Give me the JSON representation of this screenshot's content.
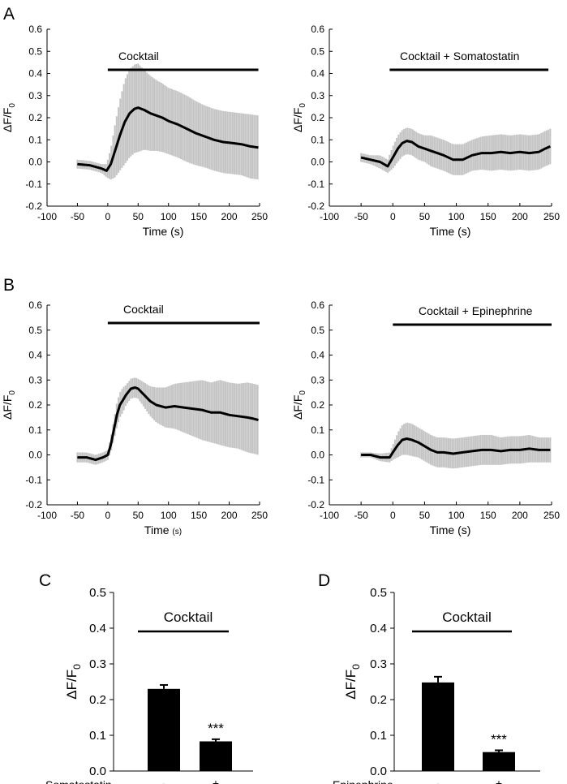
{
  "panel_labels": [
    "A",
    "B",
    "C",
    "D"
  ],
  "chart_data": [
    {
      "panel": "A",
      "type": "line",
      "title": "Cocktail",
      "xlabel": "Time (s)",
      "ylabel": "ΔF/F0",
      "xlim": [
        -100,
        250
      ],
      "ylim": [
        -0.2,
        0.6
      ],
      "xticks": [
        -100,
        -50,
        0,
        50,
        100,
        150,
        200,
        250
      ],
      "yticks": [
        -0.2,
        -0.1,
        0.0,
        0.1,
        0.2,
        0.3,
        0.4,
        0.5,
        0.6
      ],
      "ytick_labels": [
        "-0.2",
        "-0.1",
        "0.0",
        "0.1",
        "0.2",
        "0.3",
        "0.4",
        "0.5",
        "0.6"
      ],
      "bar": [
        0,
        248
      ],
      "x": [
        -50,
        -30,
        -10,
        -2,
        5,
        12,
        20,
        28,
        36,
        44,
        50,
        60,
        70,
        80,
        90,
        100,
        115,
        130,
        145,
        160,
        175,
        190,
        205,
        220,
        235,
        248
      ],
      "mean": [
        -0.01,
        -0.015,
        -0.03,
        -0.04,
        -0.01,
        0.05,
        0.12,
        0.18,
        0.22,
        0.24,
        0.245,
        0.235,
        0.22,
        0.21,
        0.2,
        0.185,
        0.17,
        0.15,
        0.13,
        0.115,
        0.1,
        0.09,
        0.085,
        0.08,
        0.07,
        0.065
      ],
      "error": [
        0.02,
        0.02,
        0.02,
        0.03,
        0.07,
        0.12,
        0.16,
        0.19,
        0.2,
        0.2,
        0.2,
        0.18,
        0.17,
        0.16,
        0.155,
        0.15,
        0.15,
        0.15,
        0.145,
        0.14,
        0.14,
        0.14,
        0.14,
        0.14,
        0.145,
        0.145
      ]
    },
    {
      "panel": "A",
      "type": "line",
      "title": "Cocktail + Somatostatin",
      "xlabel": "Time (s)",
      "ylabel": "ΔF/F0",
      "xlim": [
        -100,
        250
      ],
      "ylim": [
        -0.2,
        0.6
      ],
      "xticks": [
        -100,
        -50,
        0,
        50,
        100,
        150,
        200,
        250
      ],
      "yticks": [
        -0.2,
        -0.1,
        0.0,
        0.1,
        0.2,
        0.3,
        0.4,
        0.5,
        0.6
      ],
      "ytick_labels": [
        "-0.2",
        "-0.1",
        "0.0",
        "0.1",
        "0.2",
        "0.3",
        "0.4",
        "0.5",
        "0.6"
      ],
      "bar": [
        -5,
        245
      ],
      "x": [
        -50,
        -35,
        -20,
        -8,
        0,
        8,
        15,
        22,
        30,
        40,
        50,
        60,
        70,
        80,
        95,
        110,
        125,
        140,
        155,
        170,
        185,
        200,
        215,
        230,
        240,
        248
      ],
      "mean": [
        0.02,
        0.01,
        0.0,
        -0.02,
        0.02,
        0.06,
        0.085,
        0.095,
        0.09,
        0.07,
        0.06,
        0.05,
        0.04,
        0.03,
        0.01,
        0.01,
        0.03,
        0.04,
        0.04,
        0.045,
        0.04,
        0.045,
        0.04,
        0.045,
        0.06,
        0.07
      ],
      "error": [
        0.02,
        0.02,
        0.03,
        0.03,
        0.05,
        0.06,
        0.06,
        0.06,
        0.06,
        0.06,
        0.06,
        0.07,
        0.07,
        0.07,
        0.07,
        0.07,
        0.07,
        0.075,
        0.08,
        0.08,
        0.08,
        0.08,
        0.08,
        0.08,
        0.08,
        0.08
      ]
    },
    {
      "panel": "B",
      "type": "line",
      "title": "Cocktail",
      "xlabel": "Time",
      "xlabel_unit": "(s)",
      "ylabel": "ΔF/F0",
      "xlim": [
        -100,
        250
      ],
      "ylim": [
        -0.2,
        0.6
      ],
      "xticks": [
        -100,
        -50,
        0,
        50,
        100,
        150,
        200,
        250
      ],
      "yticks": [
        -0.2,
        -0.1,
        0.0,
        0.1,
        0.2,
        0.3,
        0.4,
        0.5,
        0.6
      ],
      "ytick_labels": [
        "-0.2",
        "-0.1",
        "0.0",
        "0.1",
        "0.2",
        "0.3",
        "0.4",
        "0.5",
        "0.6"
      ],
      "bar": [
        0,
        250
      ],
      "x": [
        -50,
        -35,
        -20,
        -8,
        0,
        5,
        10,
        15,
        20,
        25,
        30,
        38,
        45,
        50,
        60,
        70,
        80,
        95,
        110,
        125,
        140,
        155,
        170,
        185,
        200,
        215,
        230,
        240,
        248
      ],
      "mean": [
        -0.01,
        -0.01,
        -0.02,
        -0.01,
        0.0,
        0.04,
        0.1,
        0.16,
        0.2,
        0.22,
        0.24,
        0.265,
        0.27,
        0.265,
        0.24,
        0.215,
        0.2,
        0.19,
        0.195,
        0.19,
        0.185,
        0.18,
        0.17,
        0.17,
        0.16,
        0.155,
        0.15,
        0.145,
        0.14
      ],
      "error": [
        0.02,
        0.02,
        0.02,
        0.02,
        0.02,
        0.03,
        0.04,
        0.05,
        0.05,
        0.05,
        0.04,
        0.04,
        0.04,
        0.04,
        0.05,
        0.06,
        0.07,
        0.08,
        0.09,
        0.1,
        0.11,
        0.12,
        0.12,
        0.13,
        0.13,
        0.13,
        0.14,
        0.14,
        0.14
      ]
    },
    {
      "panel": "B",
      "type": "line",
      "title": "Cocktail + Epinephrine",
      "xlabel": "Time (s)",
      "ylabel": "ΔF/F0",
      "xlim": [
        -100,
        250
      ],
      "ylim": [
        -0.2,
        0.6
      ],
      "xticks": [
        -100,
        -50,
        0,
        50,
        100,
        150,
        200,
        250
      ],
      "yticks": [
        -0.2,
        -0.1,
        0.0,
        0.1,
        0.2,
        0.3,
        0.4,
        0.5,
        0.6
      ],
      "ytick_labels": [
        "-0.2",
        "-0.1",
        "0.0",
        "0.1",
        "0.2",
        "0.3",
        "0.4",
        "0.5",
        "0.6"
      ],
      "bar": [
        0,
        250
      ],
      "x": [
        -50,
        -35,
        -20,
        -5,
        0,
        8,
        15,
        22,
        30,
        40,
        50,
        60,
        70,
        80,
        95,
        110,
        125,
        140,
        155,
        170,
        185,
        200,
        215,
        230,
        240,
        248
      ],
      "mean": [
        0.0,
        0.0,
        -0.01,
        -0.01,
        0.01,
        0.04,
        0.06,
        0.065,
        0.06,
        0.05,
        0.035,
        0.02,
        0.01,
        0.01,
        0.005,
        0.01,
        0.015,
        0.02,
        0.02,
        0.015,
        0.02,
        0.02,
        0.025,
        0.02,
        0.02,
        0.02
      ],
      "error": [
        0.01,
        0.01,
        0.015,
        0.02,
        0.03,
        0.05,
        0.06,
        0.065,
        0.065,
        0.06,
        0.06,
        0.06,
        0.06,
        0.06,
        0.06,
        0.06,
        0.06,
        0.06,
        0.06,
        0.055,
        0.055,
        0.055,
        0.055,
        0.05,
        0.05,
        0.05
      ]
    },
    {
      "panel": "C",
      "type": "bar",
      "title": "Cocktail",
      "ylabel": "ΔF/F0",
      "ylim": [
        0,
        0.5
      ],
      "yticks": [
        0,
        0.1,
        0.2,
        0.3,
        0.4,
        0.5
      ],
      "ytick_labels": [
        "0.0",
        "0.1",
        "0.2",
        "0.3",
        "0.4",
        "0.5"
      ],
      "row_label": "Somatostatin",
      "categories": [
        "-",
        "+"
      ],
      "values": [
        0.23,
        0.083
      ],
      "errors": [
        0.011,
        0.006
      ],
      "annotations": [
        "",
        "***"
      ]
    },
    {
      "panel": "D",
      "type": "bar",
      "title": "Cocktail",
      "ylabel": "ΔF/F0",
      "ylim": [
        0,
        0.5
      ],
      "yticks": [
        0,
        0.1,
        0.2,
        0.3,
        0.4,
        0.5
      ],
      "ytick_labels": [
        "0.0",
        "0.1",
        "0.2",
        "0.3",
        "0.4",
        "0.5"
      ],
      "row_label": "Epinephrine",
      "categories": [
        "-",
        "+"
      ],
      "values": [
        0.248,
        0.053
      ],
      "errors": [
        0.016,
        0.005
      ],
      "annotations": [
        "",
        "***"
      ]
    }
  ]
}
